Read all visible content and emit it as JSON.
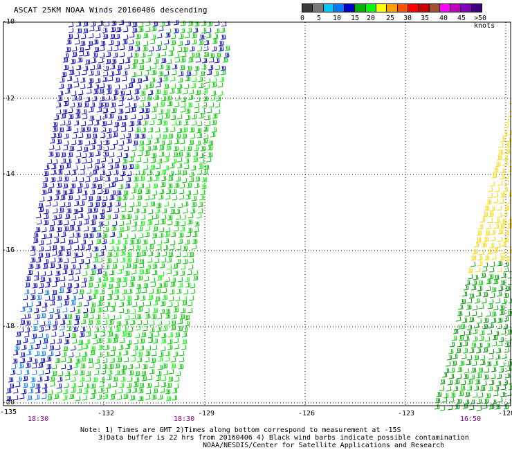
{
  "title": "ASCAT 25KM NOAA Winds 20160406 descending",
  "colorbar": {
    "colors": [
      "#3a3a3a",
      "#7a7a7a",
      "#00c8ff",
      "#0078ff",
      "#0000c8",
      "#00b400",
      "#00ff00",
      "#ffff00",
      "#ffa000",
      "#ff5000",
      "#ff0000",
      "#c80000",
      "#a05030",
      "#ff00ff",
      "#c000c0",
      "#8000c0",
      "#400080"
    ],
    "labels": [
      "0",
      "5",
      "10",
      "15",
      "20",
      "25",
      "30",
      "35",
      "40",
      "45",
      ">50 knots"
    ]
  },
  "axes": {
    "lat_labels": [
      "-10",
      "-12",
      "-14",
      "-16",
      "-18",
      "-20"
    ],
    "lon_labels": [
      "-135",
      "-132",
      "-129",
      "-126",
      "-123",
      "-120"
    ]
  },
  "times": [
    "18:30",
    "18:30",
    "16:50"
  ],
  "notes": {
    "line1": "Note: 1) Times are GMT 2)Times along bottom correspond to measurement at -15S",
    "line2": "3)Data buffer is 22 hrs from 20160406 4) Black wind barbs indicate possible contamination",
    "line3": "NOAA/NESDIS/Center for Satellite Applications and Research"
  },
  "wind_colors": {
    "blue": "#0000c8",
    "light_blue": "#0078ff",
    "green": "#00c800",
    "bright_green": "#00ff00",
    "dark_green": "#009600",
    "yellow": "#ffd700"
  }
}
